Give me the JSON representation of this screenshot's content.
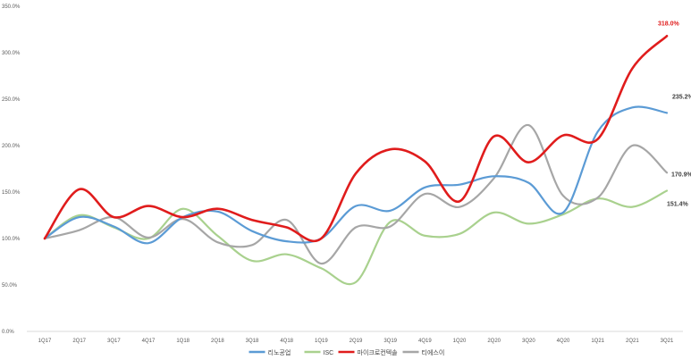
{
  "chart_data": {
    "type": "line",
    "title": "",
    "xlabel": "",
    "ylabel": "",
    "categories": [
      "1Q17",
      "2Q17",
      "3Q17",
      "4Q17",
      "1Q18",
      "2Q18",
      "3Q18",
      "4Q18",
      "1Q19",
      "2Q19",
      "3Q19",
      "4Q19",
      "1Q20",
      "2Q20",
      "3Q20",
      "4Q20",
      "1Q21",
      "2Q21",
      "3Q21"
    ],
    "y_ticks": [
      "0.0%",
      "50.0%",
      "100.0%",
      "150.0%",
      "200.0%",
      "250.0%",
      "300.0%",
      "350.0%"
    ],
    "ylim": [
      0,
      350
    ],
    "grid": false,
    "legend_position": "bottom",
    "smooth": true,
    "series": [
      {
        "name": "리노공업",
        "color": "#5b9bd5",
        "values": [
          100,
          123,
          113,
          95,
          123,
          129,
          108,
          97,
          100,
          135,
          130,
          155,
          158,
          167,
          160,
          128,
          215,
          241,
          235.2
        ],
        "end_label": "235.2%"
      },
      {
        "name": "ISC",
        "color": "#a9d18e",
        "values": [
          100,
          125,
          112,
          100,
          132,
          103,
          76,
          83,
          68,
          53,
          118,
          103,
          105,
          128,
          116,
          126,
          143,
          134,
          151.4
        ],
        "end_label": "151.4%"
      },
      {
        "name": "마이크로컨텍솔",
        "color": "#e01c1c",
        "values": [
          100,
          153,
          123,
          135,
          123,
          132,
          120,
          112,
          100,
          170,
          196,
          183,
          140,
          210,
          182,
          211,
          207,
          283,
          318
        ],
        "end_label": "318.0%"
      },
      {
        "name": "티에스이",
        "color": "#a6a6a6",
        "values": [
          100,
          109,
          123,
          101,
          121,
          96,
          93,
          120,
          73,
          112,
          113,
          148,
          134,
          165,
          222,
          146,
          144,
          200,
          170.9
        ],
        "end_label": "170.9%"
      }
    ]
  }
}
